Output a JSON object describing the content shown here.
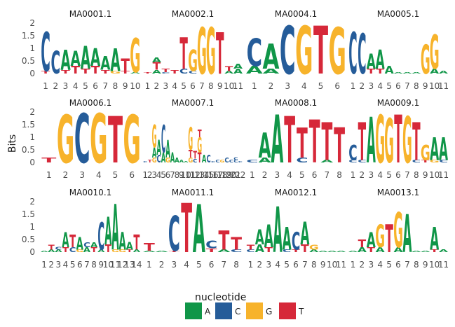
{
  "chart_data": {
    "type": "sequence-logo",
    "ylabel": "Bits",
    "ylim": [
      0,
      2
    ],
    "yticks": [
      "0",
      "0.5",
      "1",
      "1.5",
      "2"
    ],
    "legend": {
      "title": "nucleotide",
      "position": "bottom",
      "entries": [
        {
          "label": "A",
          "color": "#109648"
        },
        {
          "label": "C",
          "color": "#255C99"
        },
        {
          "label": "G",
          "color": "#F7B32B"
        },
        {
          "label": "T",
          "color": "#D62839"
        }
      ]
    },
    "panels": [
      {
        "title": "MA0001.1",
        "positions": [
          [
            [
              "T",
              0.1
            ],
            [
              "C",
              1.55
            ]
          ],
          [
            [
              "C",
              0.9
            ]
          ],
          [
            [
              "T",
              0.15
            ],
            [
              "A",
              0.8
            ]
          ],
          [
            [
              "T",
              0.3
            ],
            [
              "A",
              0.6
            ]
          ],
          [
            [
              "T",
              0.2
            ],
            [
              "A",
              0.9
            ]
          ],
          [
            [
              "T",
              0.3
            ],
            [
              "A",
              0.7
            ]
          ],
          [
            [
              "T",
              0.15
            ],
            [
              "A",
              0.55
            ]
          ],
          [
            [
              "G",
              0.1
            ],
            [
              "A",
              0.9
            ]
          ],
          [
            [
              "T",
              0.1
            ],
            [
              "T",
              0.5
            ]
          ],
          [
            [
              "A",
              0.05
            ],
            [
              "G",
              1.35
            ]
          ]
        ]
      },
      {
        "title": "MA0002.1",
        "positions": [
          [
            [
              "T",
              0.05
            ]
          ],
          [
            [
              "A",
              0.15
            ],
            [
              "T",
              0.3
            ],
            [
              "A",
              0.2
            ]
          ],
          [
            [
              "C",
              0.05
            ],
            [
              "T",
              0.15
            ]
          ],
          [
            [
              "T",
              0.15
            ]
          ],
          [
            [
              "C",
              0.2
            ],
            [
              "T",
              1.25
            ]
          ],
          [
            [
              "C",
              0.1
            ],
            [
              "G",
              0.85
            ]
          ],
          [
            [
              "G",
              1.85
            ]
          ],
          [
            [
              "G",
              1.85
            ]
          ],
          [
            [
              "T",
              1.65
            ]
          ],
          [
            [
              "A",
              0.1
            ],
            [
              "T",
              0.2
            ]
          ],
          [
            [
              "A",
              0.2
            ],
            [
              "A",
              0.2
            ]
          ]
        ]
      },
      {
        "title": "MA0004.1",
        "positions": [
          [
            [
              "A",
              0.3
            ],
            [
              "C",
              1.1
            ]
          ],
          [
            [
              "A",
              0.2
            ],
            [
              "A",
              1.0
            ]
          ],
          [
            [
              "C",
              1.9
            ]
          ],
          [
            [
              "G",
              1.9
            ]
          ],
          [
            [
              "T",
              1.9
            ]
          ],
          [
            [
              "G",
              1.85
            ]
          ]
        ]
      },
      {
        "title": "MA0005.1",
        "positions": [
          [
            [
              "C",
              1.65
            ]
          ],
          [
            [
              "C",
              1.6
            ]
          ],
          [
            [
              "T",
              0.2
            ],
            [
              "A",
              0.6
            ]
          ],
          [
            [
              "T",
              0.2
            ],
            [
              "A",
              0.75
            ]
          ],
          [
            [
              "A",
              0.3
            ]
          ],
          [
            [
              "A",
              0.05
            ]
          ],
          [
            [
              "A",
              0.05
            ]
          ],
          [
            [
              "A",
              0.05
            ]
          ],
          [
            [
              "G",
              1.15
            ]
          ],
          [
            [
              "A",
              0.2
            ],
            [
              "G",
              1.35
            ]
          ],
          [
            [
              "A",
              0.1
            ]
          ]
        ]
      },
      {
        "title": "MA0006.1",
        "positions": [
          [
            [
              "T",
              0.2
            ]
          ],
          [
            [
              "G",
              1.9
            ]
          ],
          [
            [
              "C",
              1.95
            ]
          ],
          [
            [
              "G",
              1.95
            ]
          ],
          [
            [
              "T",
              1.85
            ]
          ],
          [
            [
              "G",
              1.9
            ]
          ]
        ]
      },
      {
        "title": "MA0007.1",
        "positions": [
          [
            [
              "C",
              0.05
            ]
          ],
          [
            [
              "T",
              0.1
            ]
          ],
          [
            [
              "G",
              0.2
            ],
            [
              "A",
              0.4
            ],
            [
              "G",
              0.9
            ]
          ],
          [
            [
              "C",
              0.3
            ],
            [
              "A",
              0.6
            ]
          ],
          [
            [
              "A",
              0.4
            ],
            [
              "C",
              1.1
            ]
          ],
          [
            [
              "G",
              0.2
            ],
            [
              "A",
              0.7
            ]
          ],
          [
            [
              "A",
              0.4
            ]
          ],
          [
            [
              "A",
              0.2
            ]
          ],
          [
            [
              "A",
              0.1
            ]
          ],
          [
            [
              "A",
              0.05
            ]
          ],
          [
            [
              "G",
              0.2
            ],
            [
              "T",
              0.3
            ],
            [
              "G",
              0.9
            ]
          ],
          [
            [
              "C",
              0.15
            ],
            [
              "T",
              0.3
            ]
          ],
          [
            [
              "T",
              0.4
            ],
            [
              "G",
              0.6
            ],
            [
              "T",
              0.3
            ]
          ],
          [
            [
              "A",
              0.3
            ]
          ],
          [
            [
              "C",
              0.3
            ]
          ],
          [
            [
              "C",
              0.05
            ]
          ],
          [
            [
              "C",
              0.1
            ]
          ],
          [
            [
              "G",
              0.1
            ]
          ],
          [
            [
              "C",
              0.2
            ]
          ],
          [
            [
              "C",
              0.1
            ]
          ],
          [
            [
              "C",
              0.1
            ],
            [
              "C",
              0.1
            ]
          ],
          [
            [
              "C",
              0.05
            ]
          ]
        ]
      },
      {
        "title": "MA0008.1",
        "positions": [
          [
            [
              "C",
              0.1
            ]
          ],
          [
            [
              "A",
              0.2
            ],
            [
              "A",
              1.0
            ]
          ],
          [
            [
              "A",
              1.9
            ]
          ],
          [
            [
              "T",
              1.85
            ]
          ],
          [
            [
              "C",
              0.2
            ],
            [
              "T",
              1.2
            ]
          ],
          [
            [
              "T",
              1.7
            ]
          ],
          [
            [
              "A",
              0.1
            ],
            [
              "T",
              1.5
            ]
          ],
          [
            [
              "T",
              1.4
            ]
          ]
        ]
      },
      {
        "title": "MA0009.1",
        "positions": [
          [
            [
              "C",
              0.1
            ],
            [
              "C",
              0.6
            ]
          ],
          [
            [
              "C",
              0.1
            ],
            [
              "T",
              1.5
            ]
          ],
          [
            [
              "A",
              1.8
            ]
          ],
          [
            [
              "G",
              1.9
            ]
          ],
          [
            [
              "G",
              1.75
            ]
          ],
          [
            [
              "T",
              1.9
            ]
          ],
          [
            [
              "G",
              1.85
            ]
          ],
          [
            [
              "C",
              0.1
            ],
            [
              "T",
              1.5
            ]
          ],
          [
            [
              "T",
              0.1
            ],
            [
              "G",
              0.6
            ]
          ],
          [
            [
              "G",
              0.1
            ],
            [
              "A",
              0.9
            ]
          ],
          [
            [
              "C",
              0.1
            ],
            [
              "A",
              0.9
            ]
          ]
        ]
      },
      {
        "title": "MA0010.1",
        "positions": [
          [
            [
              "A",
              0.05
            ]
          ],
          [
            [
              "A",
              0.1
            ],
            [
              "T",
              0.2
            ]
          ],
          [
            [
              "A",
              0.1
            ],
            [
              "C",
              0.1
            ]
          ],
          [
            [
              "T",
              0.2
            ],
            [
              "A",
              0.6
            ]
          ],
          [
            [
              "C",
              0.2
            ],
            [
              "T",
              0.5
            ]
          ],
          [
            [
              "G",
              0.1
            ],
            [
              "A",
              0.5
            ]
          ],
          [
            [
              "A",
              0.2
            ],
            [
              "C",
              0.2
            ]
          ],
          [
            [
              "T",
              0.2
            ],
            [
              "A",
              0.2
            ]
          ],
          [
            [
              "A",
              0.1
            ],
            [
              "C",
              1.1
            ]
          ],
          [
            [
              "T",
              0.3
            ],
            [
              "A",
              1.1
            ]
          ],
          [
            [
              "G",
              0.1
            ],
            [
              "A",
              1.8
            ]
          ],
          [
            [
              "G",
              0.1
            ],
            [
              "A",
              0.7
            ]
          ],
          [
            [
              "T",
              0.1
            ],
            [
              "A",
              0.3
            ]
          ],
          [
            [
              "A",
              0.1
            ],
            [
              "T",
              0.6
            ]
          ]
        ]
      },
      {
        "title": "MA0011.1",
        "positions": [
          [
            [
              "A",
              0.05
            ],
            [
              "T",
              0.3
            ]
          ],
          [
            [
              "A",
              0.05
            ]
          ],
          [
            [
              "T",
              0.05
            ],
            [
              "C",
              1.4
            ]
          ],
          [
            [
              "T",
              1.95
            ]
          ],
          [
            [
              "A",
              1.9
            ]
          ],
          [
            [
              "T",
              0.15
            ],
            [
              "C",
              0.3
            ]
          ],
          [
            [
              "A",
              0.1
            ],
            [
              "T",
              0.75
            ]
          ],
          [
            [
              "C",
              0.1
            ],
            [
              "T",
              0.5
            ]
          ]
        ]
      },
      {
        "title": "MA0012.1",
        "positions": [
          [
            [
              "C",
              0.1
            ],
            [
              "T",
              0.2
            ]
          ],
          [
            [
              "A",
              0.3
            ],
            [
              "A",
              0.6
            ]
          ],
          [
            [
              "T",
              0.2
            ],
            [
              "A",
              0.9
            ]
          ],
          [
            [
              "A",
              1.8
            ]
          ],
          [
            [
              "C",
              0.1
            ],
            [
              "A",
              0.9
            ]
          ],
          [
            [
              "T",
              0.1
            ],
            [
              "C",
              0.7
            ]
          ],
          [
            [
              "T",
              0.3
            ],
            [
              "A",
              0.9
            ]
          ],
          [
            [
              "A",
              0.1
            ],
            [
              "G",
              0.2
            ]
          ],
          [
            [
              "A",
              0.05
            ]
          ],
          [
            [
              "A",
              0.05
            ]
          ],
          [
            [
              "A",
              0.05
            ]
          ]
        ]
      },
      {
        "title": "MA0013.1",
        "positions": [
          [
            [
              "A",
              0.05
            ]
          ],
          [
            [
              "A",
              0.2
            ],
            [
              "T",
              0.3
            ]
          ],
          [
            [
              "T",
              0.2
            ],
            [
              "A",
              0.6
            ]
          ],
          [
            [
              "A",
              0.2
            ],
            [
              "G",
              0.9
            ]
          ],
          [
            [
              "T",
              1.1
            ]
          ],
          [
            [
              "A",
              0.2
            ],
            [
              "G",
              1.4
            ]
          ],
          [
            [
              "A",
              1.5
            ]
          ],
          [
            [
              "A",
              0.05
            ]
          ],
          [
            [
              "A",
              0.05
            ]
          ],
          [
            [
              "T",
              0.1
            ],
            [
              "A",
              0.9
            ]
          ],
          [
            [
              "A",
              0.1
            ]
          ]
        ]
      }
    ]
  }
}
